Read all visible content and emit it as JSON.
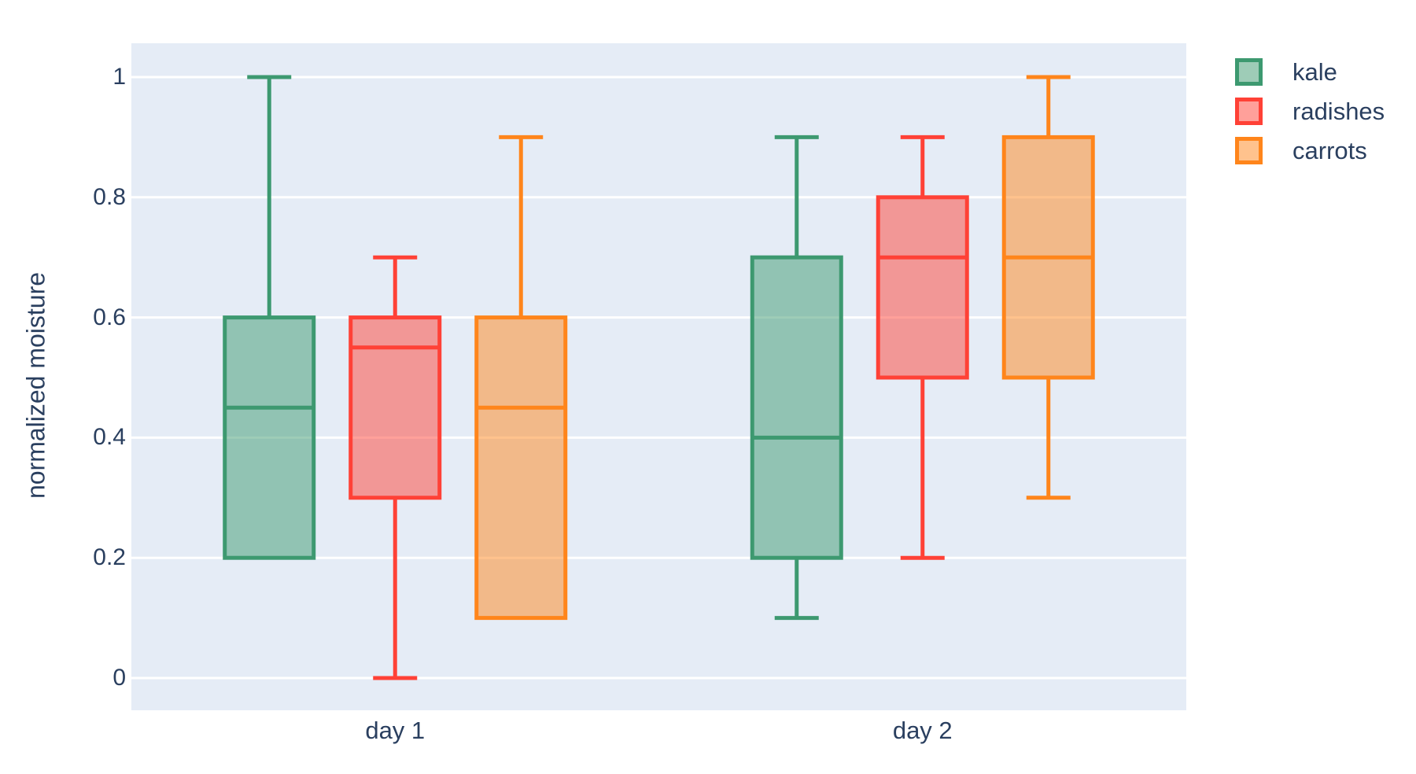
{
  "colors": {
    "page_background": "#FFFFFF",
    "plot_background": "#E5ECF6",
    "grid": "#FFFFFF",
    "text": "#2A3F5F",
    "box_fill_alpha": 0.5
  },
  "chart_data": {
    "type": "box",
    "title": "",
    "xlabel": "",
    "ylabel": "normalized moisture",
    "categories": [
      "day 1",
      "day 2"
    ],
    "y_ticks": [
      0,
      0.2,
      0.4,
      0.6,
      0.8,
      1
    ],
    "y_tick_labels": [
      "0",
      "0.2",
      "0.4",
      "0.6",
      "0.8",
      "1"
    ],
    "ylim": [
      -0.056,
      1.056
    ],
    "grid": true,
    "legend_position": "top-right-outside",
    "series": [
      {
        "name": "kale",
        "color": "#3D9970",
        "boxes": [
          {
            "category": "day 1",
            "lower_whisker": 0.2,
            "q1": 0.2,
            "median": 0.45,
            "q3": 0.6,
            "upper_whisker": 1.0
          },
          {
            "category": "day 2",
            "lower_whisker": 0.1,
            "q1": 0.2,
            "median": 0.4,
            "q3": 0.7,
            "upper_whisker": 0.9
          }
        ]
      },
      {
        "name": "radishes",
        "color": "#FF4136",
        "boxes": [
          {
            "category": "day 1",
            "lower_whisker": 0.0,
            "q1": 0.3,
            "median": 0.55,
            "q3": 0.6,
            "upper_whisker": 0.7
          },
          {
            "category": "day 2",
            "lower_whisker": 0.2,
            "q1": 0.5,
            "median": 0.7,
            "q3": 0.8,
            "upper_whisker": 0.9
          }
        ]
      },
      {
        "name": "carrots",
        "color": "#FF851B",
        "boxes": [
          {
            "category": "day 1",
            "lower_whisker": 0.1,
            "q1": 0.1,
            "median": 0.45,
            "q3": 0.6,
            "upper_whisker": 0.9
          },
          {
            "category": "day 2",
            "lower_whisker": 0.3,
            "q1": 0.5,
            "median": 0.7,
            "q3": 0.9,
            "upper_whisker": 1.0
          }
        ]
      }
    ]
  }
}
